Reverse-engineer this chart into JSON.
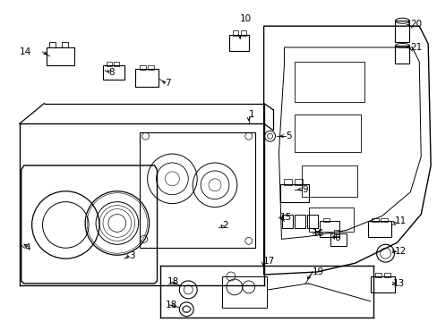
{
  "bg_color": "#ffffff",
  "line_color": "#000000",
  "figsize": [
    4.89,
    3.6
  ],
  "dpi": 100,
  "label_data": [
    [
      "1",
      278,
      128
    ],
    [
      "2",
      248,
      253
    ],
    [
      "3",
      143,
      287
    ],
    [
      "4",
      26,
      278
    ],
    [
      "5",
      320,
      152
    ],
    [
      "6",
      374,
      267
    ],
    [
      "7",
      184,
      92
    ],
    [
      "8",
      120,
      80
    ],
    [
      "9",
      338,
      212
    ],
    [
      "10",
      268,
      20
    ],
    [
      "11",
      442,
      248
    ],
    [
      "12",
      442,
      282
    ],
    [
      "13",
      440,
      318
    ],
    [
      "14",
      20,
      57
    ],
    [
      "15",
      313,
      243
    ],
    [
      "16",
      350,
      262
    ],
    [
      "17",
      294,
      293
    ],
    [
      "18",
      186,
      316
    ],
    [
      "18",
      184,
      342
    ],
    [
      "19",
      350,
      305
    ],
    [
      "20",
      460,
      26
    ],
    [
      "21",
      460,
      52
    ]
  ]
}
